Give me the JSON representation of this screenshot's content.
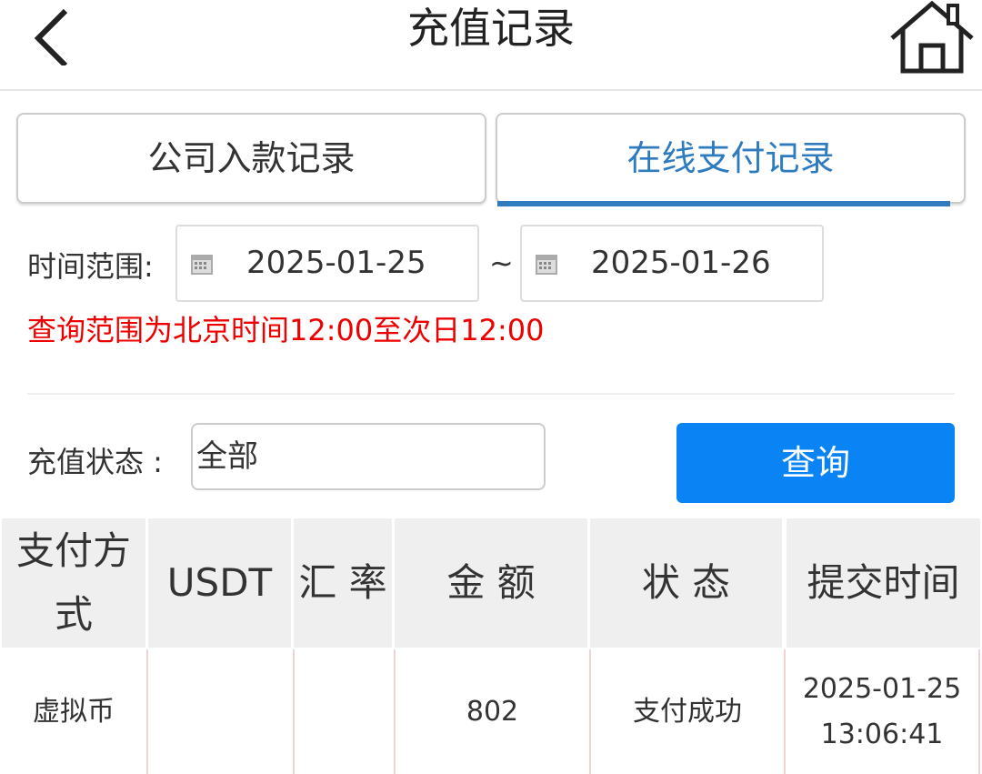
{
  "header": {
    "title": "充值记录",
    "back_icon": "chevron-left-icon",
    "home_icon": "home-icon"
  },
  "tabs": [
    {
      "label": "公司入款记录",
      "active": false
    },
    {
      "label": "在线支付记录",
      "active": true
    }
  ],
  "accent": "#2f7bbf",
  "filters": {
    "time_label": "时间范围:",
    "start_date": "2025-01-25",
    "separator": "~",
    "end_date": "2025-01-26",
    "note": "查询范围为北京时间12:00至次日12:00",
    "status_label": "充值状态 :",
    "status_value": "全部",
    "query_label": "查询"
  },
  "table": {
    "headers": [
      "支付方式",
      "USDT",
      "汇 率",
      "金 额",
      "状 态",
      "提交时间"
    ],
    "rows": [
      {
        "method": "虚拟币",
        "usdt": "",
        "rate": "",
        "amount": "802",
        "status": "支付成功",
        "date": "2025-01-25",
        "time": "13:06:41"
      }
    ]
  }
}
